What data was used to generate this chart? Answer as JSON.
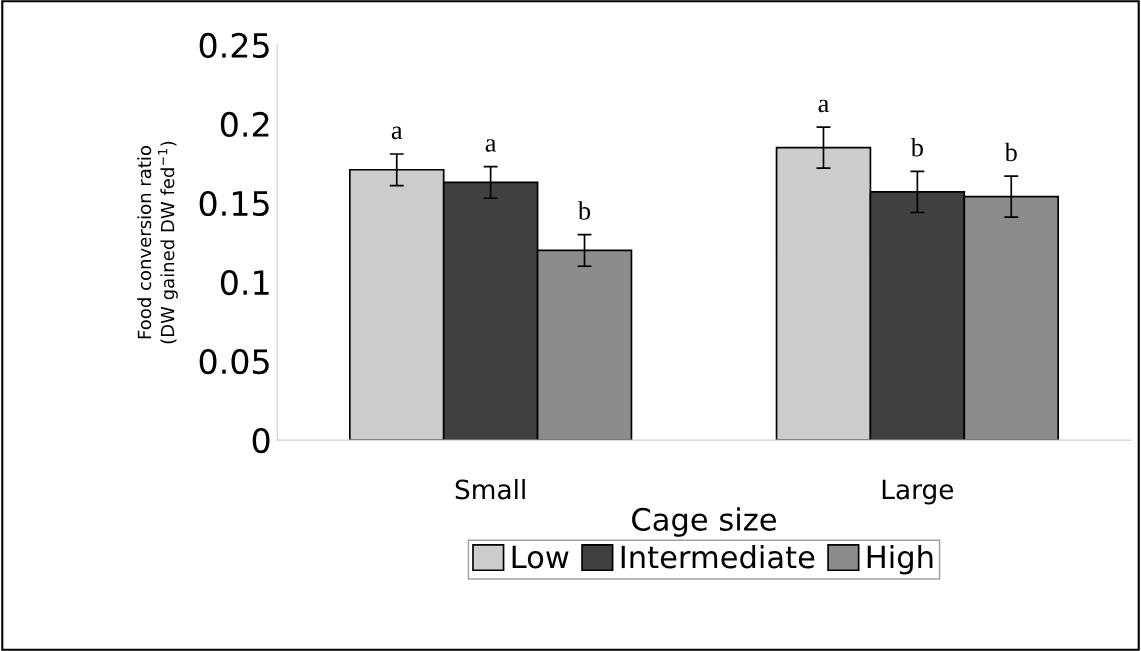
{
  "chart_data": {
    "type": "bar",
    "xlabel": "Cage size",
    "ylabel": "Food conversion ratio\n(DW gained DW fed$^{−1}$)",
    "categories": [
      "Small",
      "Large"
    ],
    "series": [
      {
        "name": "Low",
        "color": "#cccccc",
        "values": [
          0.171,
          0.185
        ],
        "errors": [
          0.01,
          0.013
        ],
        "value_labels": [
          "a",
          "a"
        ]
      },
      {
        "name": "Intermediate",
        "color": "#404040",
        "values": [
          0.163,
          0.157
        ],
        "errors": [
          0.01,
          0.013
        ],
        "value_labels": [
          "a",
          "b"
        ]
      },
      {
        "name": "High",
        "color": "#8c8c8c",
        "values": [
          0.12,
          0.154
        ],
        "errors": [
          0.01,
          0.013
        ],
        "value_labels": [
          "b",
          "b"
        ]
      }
    ],
    "ylim": [
      0,
      0.25
    ],
    "yticks": [
      0,
      0.05,
      0.1,
      0.15,
      0.2,
      0.25
    ],
    "grid": false,
    "legend": "bottom"
  }
}
